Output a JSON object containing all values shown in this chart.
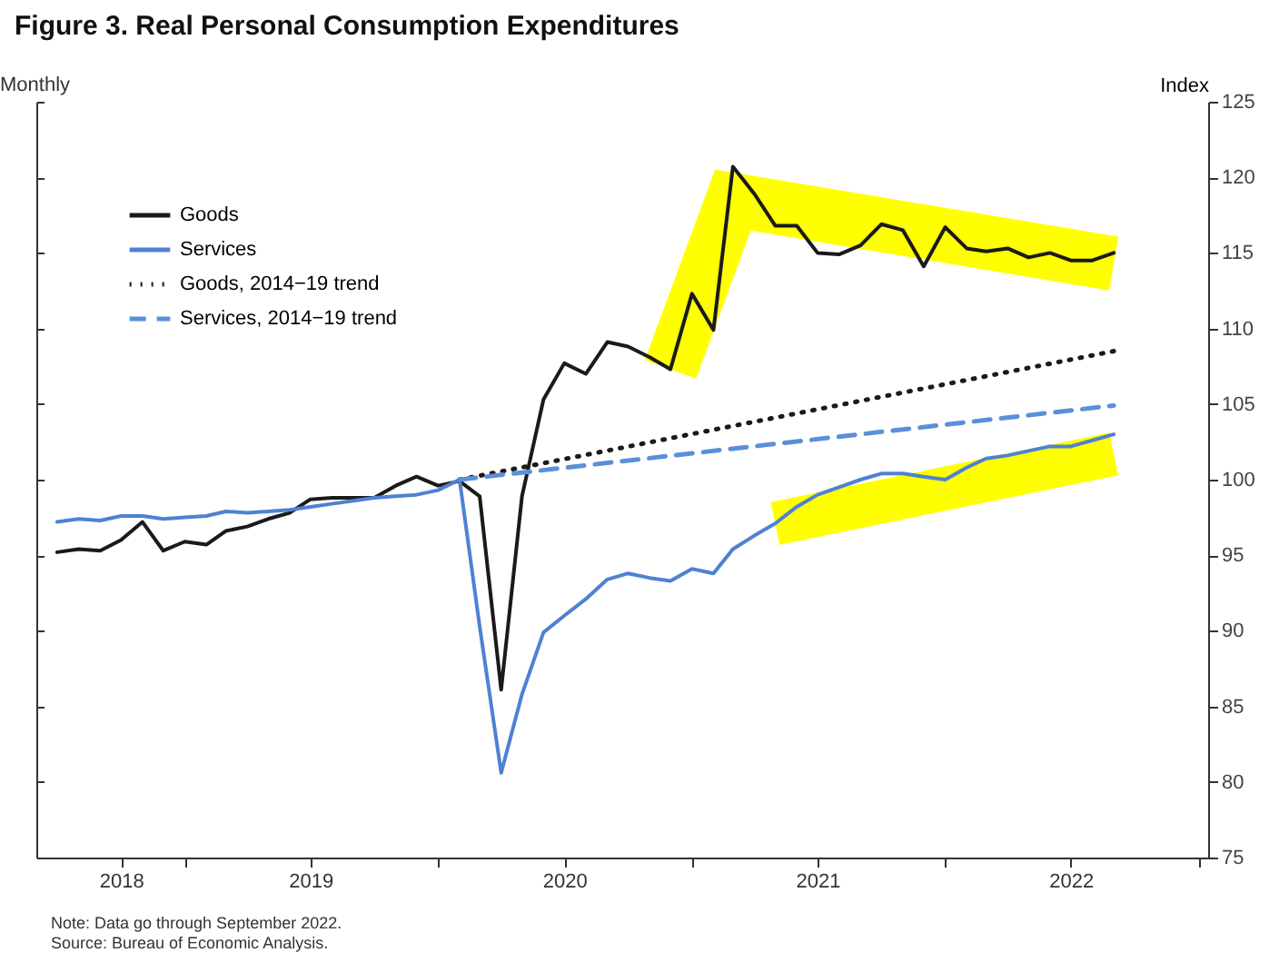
{
  "chart_data": {
    "type": "line",
    "title": "Figure 3. Real Personal Consumption Expenditures",
    "ylabel": "Index",
    "annotations": [
      "Monthly",
      "Note: Data go through September 2022.",
      "Source: Bureau of Economic Analysis."
    ],
    "x": [
      "2018-07",
      "2018-08",
      "2018-09",
      "2018-10",
      "2018-11",
      "2018-12",
      "2019-01",
      "2019-02",
      "2019-03",
      "2019-04",
      "2019-05",
      "2019-06",
      "2019-07",
      "2019-08",
      "2019-09",
      "2019-10",
      "2019-11",
      "2019-12",
      "2020-01",
      "2020-02",
      "2020-03",
      "2020-04",
      "2020-05",
      "2020-06",
      "2020-07",
      "2020-08",
      "2020-09",
      "2020-10",
      "2020-11",
      "2020-12",
      "2021-01",
      "2021-02",
      "2021-03",
      "2021-04",
      "2021-05",
      "2021-06",
      "2021-07",
      "2021-08",
      "2021-09",
      "2021-10",
      "2021-11",
      "2021-12",
      "2022-01",
      "2022-02",
      "2022-03",
      "2022-04",
      "2022-05",
      "2022-06",
      "2022-07",
      "2022-08",
      "2022-09"
    ],
    "series": [
      {
        "name": "Goods",
        "color": "#1a1a1a",
        "line_style": "solid",
        "values": [
          95.2,
          95.4,
          95.3,
          96.0,
          97.2,
          95.3,
          95.9,
          95.7,
          96.6,
          96.9,
          97.4,
          97.8,
          98.7,
          98.8,
          98.8,
          98.8,
          99.6,
          100.2,
          99.6,
          99.9,
          98.9,
          86.1,
          98.9,
          105.3,
          107.7,
          107.0,
          109.1,
          108.8,
          108.1,
          107.3,
          112.3,
          109.9,
          120.7,
          118.9,
          116.8,
          116.8,
          115.0,
          114.9,
          115.5,
          116.9,
          116.5,
          114.1,
          116.7,
          115.3,
          115.1,
          115.3,
          114.7,
          115.0,
          114.5,
          114.5,
          115.0
        ]
      },
      {
        "name": "Services",
        "color": "#4f81d2",
        "line_style": "solid",
        "values": [
          97.2,
          97.4,
          97.3,
          97.6,
          97.6,
          97.4,
          97.5,
          97.6,
          97.9,
          97.8,
          97.9,
          98.0,
          98.2,
          98.4,
          98.6,
          98.8,
          98.9,
          99.0,
          99.3,
          100.0,
          90.3,
          80.6,
          85.8,
          89.9,
          91.0,
          92.1,
          93.4,
          93.8,
          93.5,
          93.3,
          94.1,
          93.8,
          95.4,
          96.3,
          97.1,
          98.2,
          99.0,
          99.5,
          100.0,
          100.4,
          100.4,
          100.2,
          100.0,
          100.8,
          101.4,
          101.6,
          101.9,
          102.2,
          102.2,
          102.6,
          103.0
        ]
      },
      {
        "name": "Goods, 2014−19 trend",
        "color": "#1a1a1a",
        "line_style": "dotted",
        "x": [
          "2020-02",
          "2022-09"
        ],
        "values": [
          100.0,
          108.5
        ]
      },
      {
        "name": "Services, 2014−19 trend",
        "color": "#5b8fd9",
        "line_style": "dashed",
        "x": [
          "2020-02",
          "2022-09"
        ],
        "values": [
          100.0,
          104.9
        ]
      }
    ],
    "xlim": [
      "2018-06",
      "2023-01-15"
    ],
    "xticks": [
      {
        "value": "2018-10",
        "label": "2018"
      },
      {
        "value": "2019-01",
        "label": null
      },
      {
        "value": "2019-07",
        "label": "2019"
      },
      {
        "value": "2020-01",
        "label": null
      },
      {
        "value": "2020-07",
        "label": "2020"
      },
      {
        "value": "2021-01",
        "label": null
      },
      {
        "value": "2021-07",
        "label": "2021"
      },
      {
        "value": "2022-01",
        "label": null
      },
      {
        "value": "2022-07",
        "label": "2022"
      },
      {
        "value": "2023-01",
        "label": null
      }
    ],
    "ylim": [
      75,
      125
    ],
    "yticks": [
      75,
      80,
      85,
      90,
      95,
      100,
      105,
      110,
      115,
      120,
      125
    ],
    "grid": false,
    "legend": "top left"
  }
}
